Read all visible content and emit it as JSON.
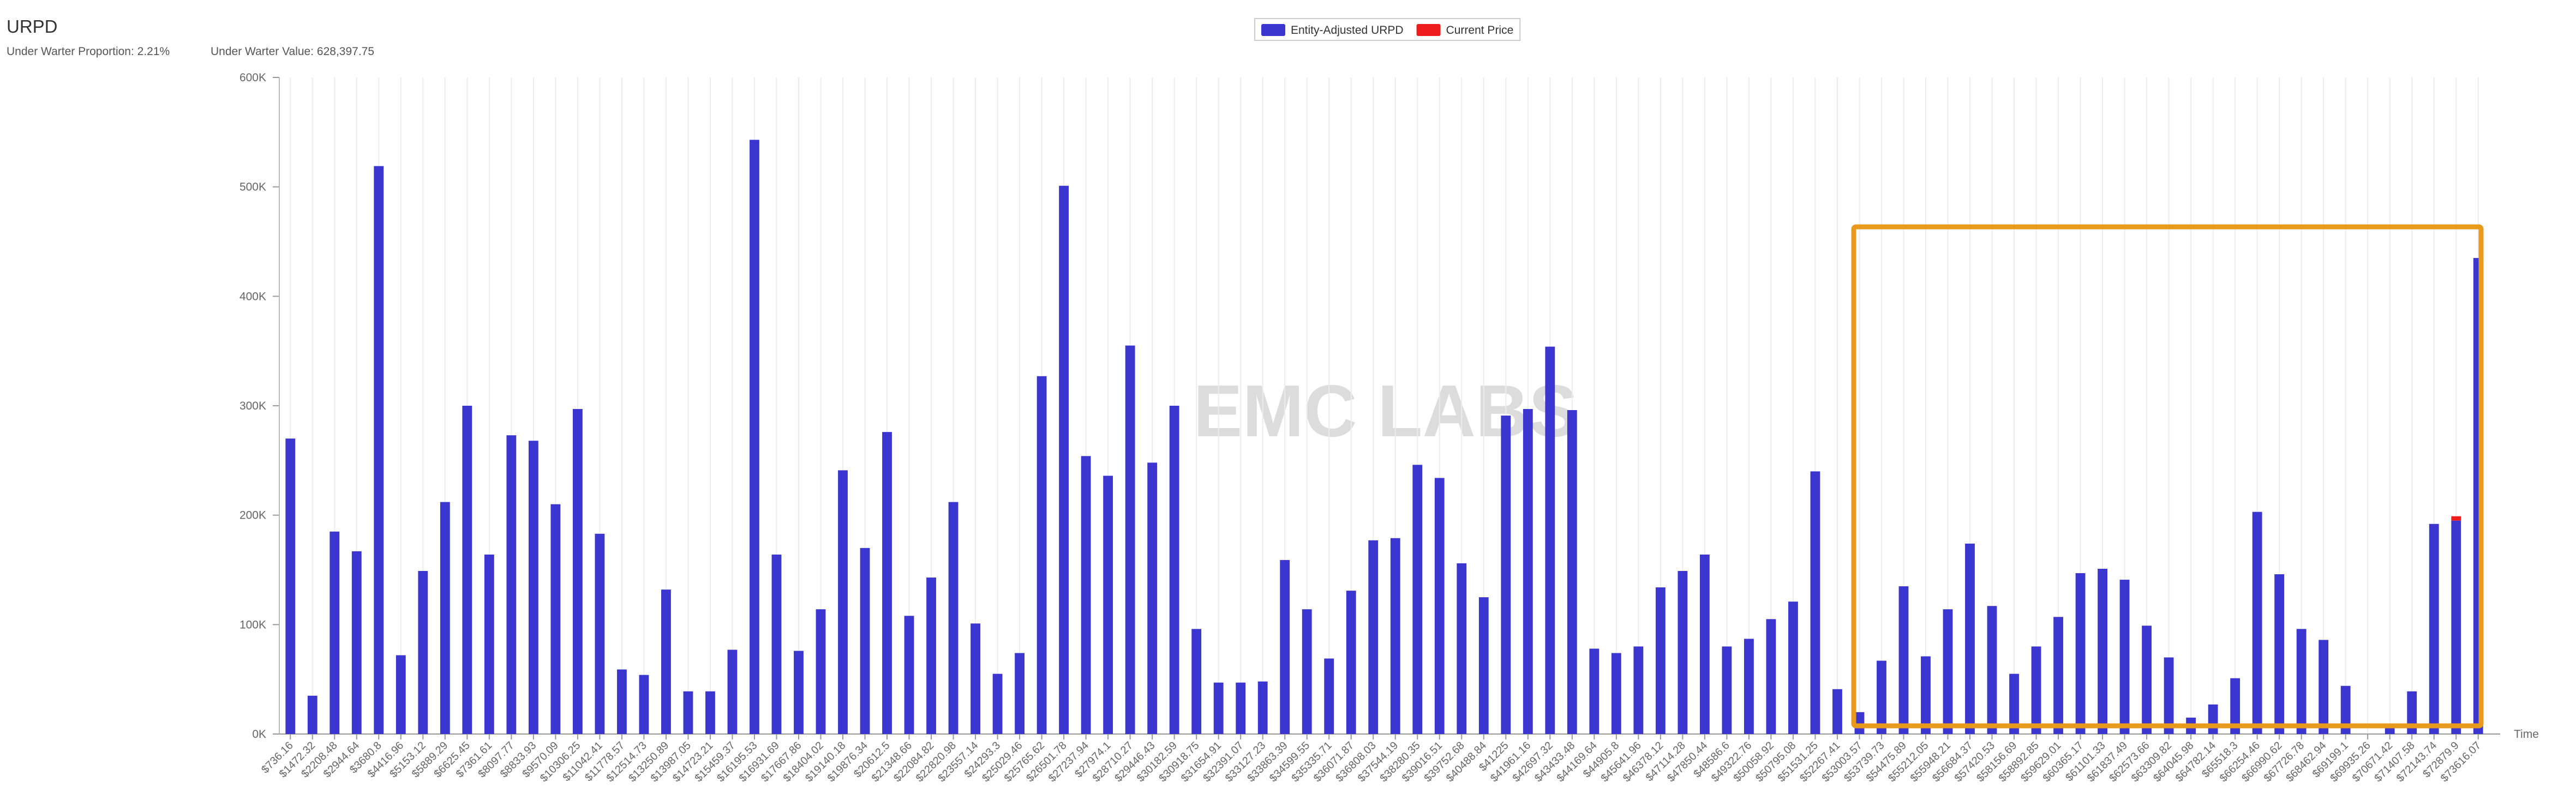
{
  "chart_data": {
    "type": "bar",
    "title": "URPD",
    "subtitle": [
      "Under Warter Proportion: 2.21%",
      "Under Warter Value:  628,397.75"
    ],
    "watermark": "EMC LABS",
    "x_label": "Time",
    "stacked": true,
    "legend": "top",
    "grid": true,
    "categories": [
      "$736.16",
      "$1472.32",
      "$2208.48",
      "$2944.64",
      "$3680.8",
      "$4416.96",
      "$5153.12",
      "$5889.29",
      "$6625.45",
      "$7361.61",
      "$8097.77",
      "$8833.93",
      "$9570.09",
      "$10306.25",
      "$11042.41",
      "$11778.57",
      "$12514.73",
      "$13250.89",
      "$13987.05",
      "$14723.21",
      "$15459.37",
      "$16195.53",
      "$16931.69",
      "$17667.86",
      "$18404.02",
      "$19140.18",
      "$19876.34",
      "$20612.5",
      "$21348.66",
      "$22084.82",
      "$22820.98",
      "$23557.14",
      "$24293.3",
      "$25029.46",
      "$25765.62",
      "$26501.78",
      "$27237.94",
      "$27974.1",
      "$28710.27",
      "$29446.43",
      "$30182.59",
      "$30918.75",
      "$31654.91",
      "$32391.07",
      "$33127.23",
      "$33863.39",
      "$34599.55",
      "$35335.71",
      "$36071.87",
      "$36808.03",
      "$37544.19",
      "$38280.35",
      "$39016.51",
      "$39752.68",
      "$40488.84",
      "$41225",
      "$41961.16",
      "$42697.32",
      "$43433.48",
      "$44169.64",
      "$44905.8",
      "$45641.96",
      "$46378.12",
      "$47114.28",
      "$47850.44",
      "$48586.6",
      "$49322.76",
      "$50058.92",
      "$50795.08",
      "$51531.25",
      "$52267.41",
      "$53003.57",
      "$53739.73",
      "$54475.89",
      "$55212.05",
      "$55948.21",
      "$56684.37",
      "$57420.53",
      "$58156.69",
      "$58892.85",
      "$59629.01",
      "$60365.17",
      "$61101.33",
      "$61837.49",
      "$62573.66",
      "$63309.82",
      "$64045.98",
      "$64782.14",
      "$65518.3",
      "$66254.46",
      "$66990.62",
      "$67726.78",
      "$68462.94",
      "$69199.1",
      "$69935.26",
      "$70671.42",
      "$71407.58",
      "$72143.74",
      "$72879.9",
      "$73616.07"
    ],
    "series": [
      {
        "name": "Entity-Adjusted URPD",
        "color": "#3b36cf",
        "values": [
          270000,
          35000,
          185000,
          167000,
          519000,
          72000,
          149000,
          212000,
          300000,
          164000,
          273000,
          268000,
          210000,
          297000,
          183000,
          59000,
          54000,
          132000,
          39000,
          39000,
          77000,
          543000,
          164000,
          76000,
          114000,
          241000,
          170000,
          276000,
          108000,
          143000,
          212000,
          101000,
          55000,
          74000,
          327000,
          501000,
          254000,
          236000,
          355000,
          248000,
          300000,
          96000,
          47000,
          47000,
          48000,
          159000,
          114000,
          69000,
          131000,
          177000,
          179000,
          246000,
          234000,
          156000,
          125000,
          291000,
          297000,
          354000,
          296000,
          78000,
          74000,
          80000,
          134000,
          149000,
          164000,
          80000,
          87000,
          105000,
          121000,
          240000,
          41000,
          20000,
          67000,
          135000,
          71000,
          114000,
          174000,
          117000,
          55000,
          80000,
          107000,
          147000,
          151000,
          141000,
          99000,
          70000,
          15000,
          27000,
          51000,
          203000,
          146000,
          96000,
          86000,
          44000,
          0,
          6000,
          39000,
          192000,
          195000,
          435000
        ]
      },
      {
        "name": "Current Price",
        "color": "#ee1c1c",
        "values": [
          null,
          null,
          null,
          null,
          null,
          null,
          null,
          null,
          null,
          null,
          null,
          null,
          null,
          null,
          null,
          null,
          null,
          null,
          null,
          null,
          null,
          null,
          null,
          null,
          null,
          null,
          null,
          null,
          null,
          null,
          null,
          null,
          null,
          null,
          null,
          null,
          null,
          null,
          null,
          null,
          null,
          null,
          null,
          null,
          null,
          null,
          null,
          null,
          null,
          null,
          null,
          null,
          null,
          null,
          null,
          null,
          null,
          null,
          null,
          null,
          null,
          null,
          null,
          null,
          null,
          null,
          null,
          null,
          null,
          null,
          null,
          null,
          null,
          null,
          null,
          null,
          null,
          null,
          null,
          null,
          null,
          null,
          null,
          null,
          null,
          null,
          null,
          null,
          null,
          null,
          null,
          null,
          null,
          null,
          null,
          null,
          null,
          null,
          4000,
          null
        ]
      }
    ],
    "ylim": [
      0,
      600000
    ],
    "yticks": [
      {
        "value": 0,
        "label": "0K"
      },
      {
        "value": 100000,
        "label": "100K"
      },
      {
        "value": 200000,
        "label": "200K"
      },
      {
        "value": 300000,
        "label": "300K"
      },
      {
        "value": 400000,
        "label": "400K"
      },
      {
        "value": 500000,
        "label": "500K"
      },
      {
        "value": 600000,
        "label": "600K"
      }
    ]
  }
}
